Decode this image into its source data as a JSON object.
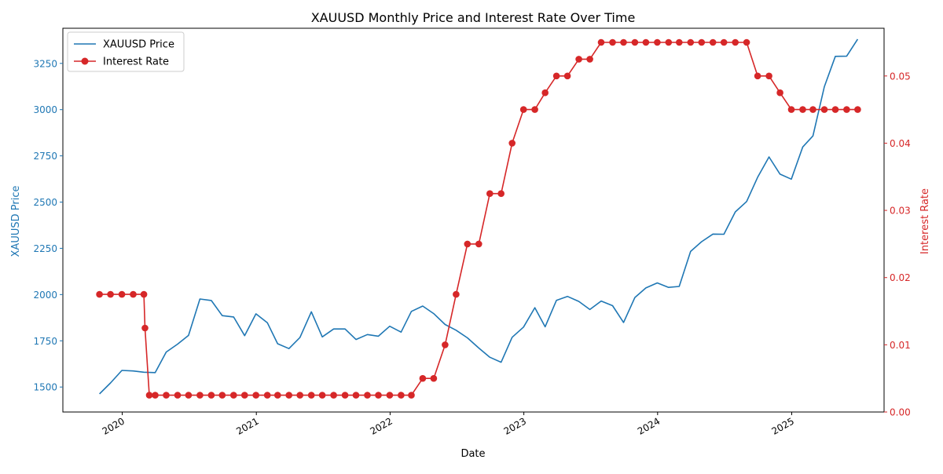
{
  "chart_data": {
    "type": "line",
    "title": "XAUUSD Monthly Price and Interest Rate Over Time",
    "xlabel": "Date",
    "ylabel_left": "XAUUSD Price",
    "ylabel_right": "Interest Rate",
    "x_ticks": [
      "2020",
      "2021",
      "2022",
      "2023",
      "2024",
      "2025"
    ],
    "y_left_ticks": [
      "1500",
      "1750",
      "2000",
      "2250",
      "2500",
      "2750",
      "3000",
      "3250"
    ],
    "y_right_ticks": [
      "0.00",
      "0.01",
      "0.02",
      "0.03",
      "0.04",
      "0.05"
    ],
    "y_left_lim": [
      1365,
      3440
    ],
    "y_right_lim": [
      0.0,
      0.0571
    ],
    "x_lim": [
      "2019-07-23",
      "2025-09-10"
    ],
    "grid": false,
    "legend_position": "upper-left",
    "colors": {
      "price": "#1f77b4",
      "rate": "#d62728"
    },
    "series": [
      {
        "name": "XAUUSD Price",
        "axis": "left",
        "marker": "none",
        "points": [
          [
            "2019-10-31",
            1463
          ],
          [
            "2019-11-30",
            1522
          ],
          [
            "2019-12-31",
            1590
          ],
          [
            "2020-01-31",
            1587
          ],
          [
            "2020-02-29",
            1580
          ],
          [
            "2020-03-31",
            1578
          ],
          [
            "2020-04-30",
            1689
          ],
          [
            "2020-05-31",
            1732
          ],
          [
            "2020-06-30",
            1779
          ],
          [
            "2020-07-31",
            1976
          ],
          [
            "2020-08-31",
            1968
          ],
          [
            "2020-09-30",
            1886
          ],
          [
            "2020-10-31",
            1879
          ],
          [
            "2020-11-30",
            1778
          ],
          [
            "2020-12-31",
            1896
          ],
          [
            "2021-01-31",
            1848
          ],
          [
            "2021-02-28",
            1734
          ],
          [
            "2021-03-31",
            1708
          ],
          [
            "2021-04-30",
            1768
          ],
          [
            "2021-05-31",
            1907
          ],
          [
            "2021-06-30",
            1771
          ],
          [
            "2021-07-31",
            1814
          ],
          [
            "2021-08-31",
            1814
          ],
          [
            "2021-09-30",
            1757
          ],
          [
            "2021-10-31",
            1784
          ],
          [
            "2021-11-30",
            1775
          ],
          [
            "2021-12-31",
            1829
          ],
          [
            "2022-01-31",
            1797
          ],
          [
            "2022-02-28",
            1909
          ],
          [
            "2022-03-31",
            1938
          ],
          [
            "2022-04-30",
            1897
          ],
          [
            "2022-05-31",
            1838
          ],
          [
            "2022-06-30",
            1807
          ],
          [
            "2022-07-31",
            1766
          ],
          [
            "2022-08-31",
            1711
          ],
          [
            "2022-09-30",
            1661
          ],
          [
            "2022-10-31",
            1634
          ],
          [
            "2022-11-30",
            1769
          ],
          [
            "2022-12-31",
            1824
          ],
          [
            "2023-01-31",
            1929
          ],
          [
            "2023-02-28",
            1826
          ],
          [
            "2023-03-31",
            1969
          ],
          [
            "2023-04-30",
            1990
          ],
          [
            "2023-05-31",
            1963
          ],
          [
            "2023-06-30",
            1919
          ],
          [
            "2023-07-31",
            1965
          ],
          [
            "2023-08-31",
            1940
          ],
          [
            "2023-09-30",
            1849
          ],
          [
            "2023-10-31",
            1984
          ],
          [
            "2023-11-30",
            2036
          ],
          [
            "2023-12-31",
            2063
          ],
          [
            "2024-01-31",
            2039
          ],
          [
            "2024-02-29",
            2044
          ],
          [
            "2024-03-31",
            2233
          ],
          [
            "2024-04-30",
            2286
          ],
          [
            "2024-05-31",
            2327
          ],
          [
            "2024-06-30",
            2326
          ],
          [
            "2024-07-31",
            2447
          ],
          [
            "2024-08-31",
            2503
          ],
          [
            "2024-09-30",
            2634
          ],
          [
            "2024-10-31",
            2744
          ],
          [
            "2024-11-30",
            2651
          ],
          [
            "2024-12-31",
            2624
          ],
          [
            "2025-01-31",
            2798
          ],
          [
            "2025-02-28",
            2858
          ],
          [
            "2025-03-31",
            3124
          ],
          [
            "2025-04-30",
            3288
          ],
          [
            "2025-05-31",
            3289
          ],
          [
            "2025-06-30",
            3381
          ]
        ]
      },
      {
        "name": "Interest Rate",
        "axis": "right",
        "marker": "circle",
        "points": [
          [
            "2019-10-31",
            0.0175
          ],
          [
            "2019-11-30",
            0.0175
          ],
          [
            "2019-12-31",
            0.0175
          ],
          [
            "2020-01-31",
            0.0175
          ],
          [
            "2020-02-29",
            0.0175
          ],
          [
            "2020-03-03",
            0.0125
          ],
          [
            "2020-03-15",
            0.0025
          ],
          [
            "2020-03-31",
            0.0025
          ],
          [
            "2020-04-30",
            0.0025
          ],
          [
            "2020-05-31",
            0.0025
          ],
          [
            "2020-06-30",
            0.0025
          ],
          [
            "2020-07-31",
            0.0025
          ],
          [
            "2020-08-31",
            0.0025
          ],
          [
            "2020-09-30",
            0.0025
          ],
          [
            "2020-10-31",
            0.0025
          ],
          [
            "2020-11-30",
            0.0025
          ],
          [
            "2020-12-31",
            0.0025
          ],
          [
            "2021-01-31",
            0.0025
          ],
          [
            "2021-02-28",
            0.0025
          ],
          [
            "2021-03-31",
            0.0025
          ],
          [
            "2021-04-30",
            0.0025
          ],
          [
            "2021-05-31",
            0.0025
          ],
          [
            "2021-06-30",
            0.0025
          ],
          [
            "2021-07-31",
            0.0025
          ],
          [
            "2021-08-31",
            0.0025
          ],
          [
            "2021-09-30",
            0.0025
          ],
          [
            "2021-10-31",
            0.0025
          ],
          [
            "2021-11-30",
            0.0025
          ],
          [
            "2021-12-31",
            0.0025
          ],
          [
            "2022-01-31",
            0.0025
          ],
          [
            "2022-02-28",
            0.0025
          ],
          [
            "2022-03-31",
            0.005
          ],
          [
            "2022-04-30",
            0.005
          ],
          [
            "2022-05-31",
            0.01
          ],
          [
            "2022-06-30",
            0.0175
          ],
          [
            "2022-07-31",
            0.025
          ],
          [
            "2022-08-31",
            0.025
          ],
          [
            "2022-09-30",
            0.0325
          ],
          [
            "2022-10-31",
            0.0325
          ],
          [
            "2022-11-30",
            0.04
          ],
          [
            "2022-12-31",
            0.045
          ],
          [
            "2023-01-31",
            0.045
          ],
          [
            "2023-02-28",
            0.0475
          ],
          [
            "2023-03-31",
            0.05
          ],
          [
            "2023-04-30",
            0.05
          ],
          [
            "2023-05-31",
            0.0525
          ],
          [
            "2023-06-30",
            0.0525
          ],
          [
            "2023-07-31",
            0.055
          ],
          [
            "2023-08-31",
            0.055
          ],
          [
            "2023-09-30",
            0.055
          ],
          [
            "2023-10-31",
            0.055
          ],
          [
            "2023-11-30",
            0.055
          ],
          [
            "2023-12-31",
            0.055
          ],
          [
            "2024-01-31",
            0.055
          ],
          [
            "2024-02-29",
            0.055
          ],
          [
            "2024-03-31",
            0.055
          ],
          [
            "2024-04-30",
            0.055
          ],
          [
            "2024-05-31",
            0.055
          ],
          [
            "2024-06-30",
            0.055
          ],
          [
            "2024-07-31",
            0.055
          ],
          [
            "2024-08-31",
            0.055
          ],
          [
            "2024-09-30",
            0.05
          ],
          [
            "2024-10-31",
            0.05
          ],
          [
            "2024-11-30",
            0.0475
          ],
          [
            "2024-12-31",
            0.045
          ],
          [
            "2025-01-31",
            0.045
          ],
          [
            "2025-02-28",
            0.045
          ],
          [
            "2025-03-31",
            0.045
          ],
          [
            "2025-04-30",
            0.045
          ],
          [
            "2025-05-31",
            0.045
          ],
          [
            "2025-06-30",
            0.045
          ]
        ]
      }
    ]
  }
}
